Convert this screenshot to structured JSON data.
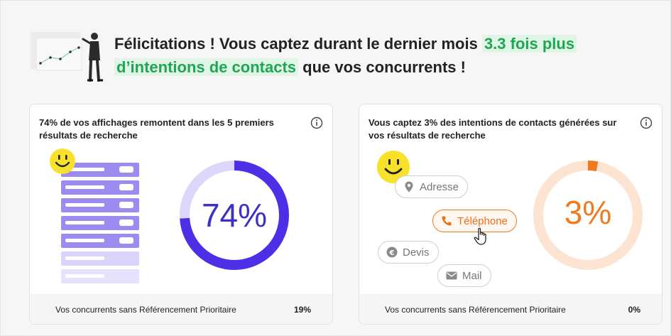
{
  "header": {
    "headline_part1": "Félicitations ! Vous captez durant le dernier mois ",
    "headline_highlight1": "3.3 fois plus",
    "headline_highlight2": "d’intentions de contacts",
    "headline_part2": " que vos concurrents !",
    "highlight_color": "#1fa653"
  },
  "cards": [
    {
      "title": "74% de vos affichages remontent dans les 5 premiers résultats de recherche",
      "percent_label": "74%",
      "percent_value": 0.74,
      "ring_color": "#4f2ee8",
      "ring_track_color": "#ddd6fb",
      "illustration": "results-list-smiley",
      "footer_label": "Vos concurrents sans Référencement Prioritaire",
      "footer_value": "19%"
    },
    {
      "title": "Vous captez 3% des intentions de contacts générées sur vos résultats de recherche",
      "percent_label": "3%",
      "percent_value": 0.03,
      "ring_color": "#f07b1f",
      "ring_track_color": "#fde3d1",
      "illustration": "contact-pills-smiley",
      "pills": [
        {
          "label": "Adresse",
          "icon": "map-pin-icon"
        },
        {
          "label": "Téléphone",
          "icon": "phone-icon",
          "active": true
        },
        {
          "label": "Devis",
          "icon": "euro-icon"
        },
        {
          "label": "Mail",
          "icon": "mail-icon"
        }
      ],
      "footer_label": "Vos concurrents sans Référencement Prioritaire",
      "footer_value": "0%"
    }
  ]
}
